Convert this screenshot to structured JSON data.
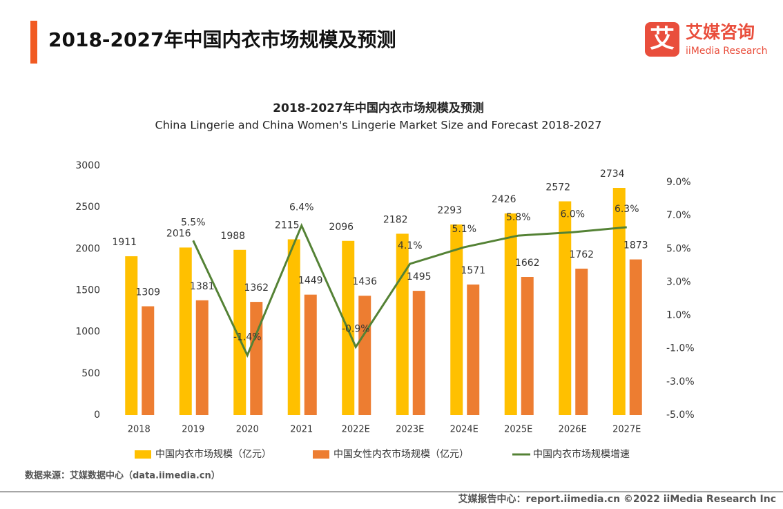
{
  "header": {
    "title": "2018-2027年中国内衣市场规模及预测",
    "logo_icon": "艾",
    "logo_cn": "艾媒咨询",
    "logo_en": "iiMedia Research"
  },
  "chart_data": {
    "type": "bar",
    "title": "2018-2027年中国内衣市场规模及预测",
    "subtitle": "China Lingerie and China Women's Lingerie Market Size and Forecast 2018-2027",
    "categories": [
      "2018",
      "2019",
      "2020",
      "2021",
      "2022E",
      "2023E",
      "2024E",
      "2025E",
      "2026E",
      "2027E"
    ],
    "series": [
      {
        "name": "中国内衣市场规模（亿元）",
        "color": "#ffc000",
        "type": "bar",
        "values": [
          1911,
          2016,
          1988,
          2115,
          2096,
          2182,
          2293,
          2426,
          2572,
          2734
        ]
      },
      {
        "name": "中国女性内衣市场规模（亿元）",
        "color": "#ed7d31",
        "type": "bar",
        "values": [
          1309,
          1381,
          1362,
          1449,
          1436,
          1495,
          1571,
          1662,
          1762,
          1873
        ]
      },
      {
        "name": "中国内衣市场规模增速",
        "color": "#548235",
        "type": "line",
        "axis": "y2",
        "values": [
          null,
          5.5,
          -1.4,
          6.4,
          -0.9,
          4.1,
          5.1,
          5.8,
          6.0,
          6.3
        ],
        "value_labels": [
          null,
          "5.5%",
          "-1.4%",
          "6.4%",
          "-0.9%",
          "4.1%",
          "5.1%",
          "5.8%",
          "6.0%",
          "6.3%"
        ]
      }
    ],
    "ylim": [
      0,
      3000
    ],
    "yticks": [
      0,
      500,
      1000,
      1500,
      2000,
      2500,
      3000
    ],
    "y2lim": [
      -5,
      10
    ],
    "y2ticks": [
      {
        "value": -5,
        "label": "-5.0%"
      },
      {
        "value": -3,
        "label": "-3.0%"
      },
      {
        "value": -1,
        "label": "-1.0%"
      },
      {
        "value": 1,
        "label": "1.0%"
      },
      {
        "value": 3,
        "label": "3.0%"
      },
      {
        "value": 5,
        "label": "5.0%"
      },
      {
        "value": 7,
        "label": "7.0%"
      },
      {
        "value": 9,
        "label": "9.0%"
      }
    ],
    "grid": false,
    "legend": "bottom"
  },
  "source": "数据来源：艾媒数据中心（data.iimedia.cn）",
  "footer": "艾媒报告中心：report.iimedia.cn  ©2022  iiMedia Research  Inc"
}
